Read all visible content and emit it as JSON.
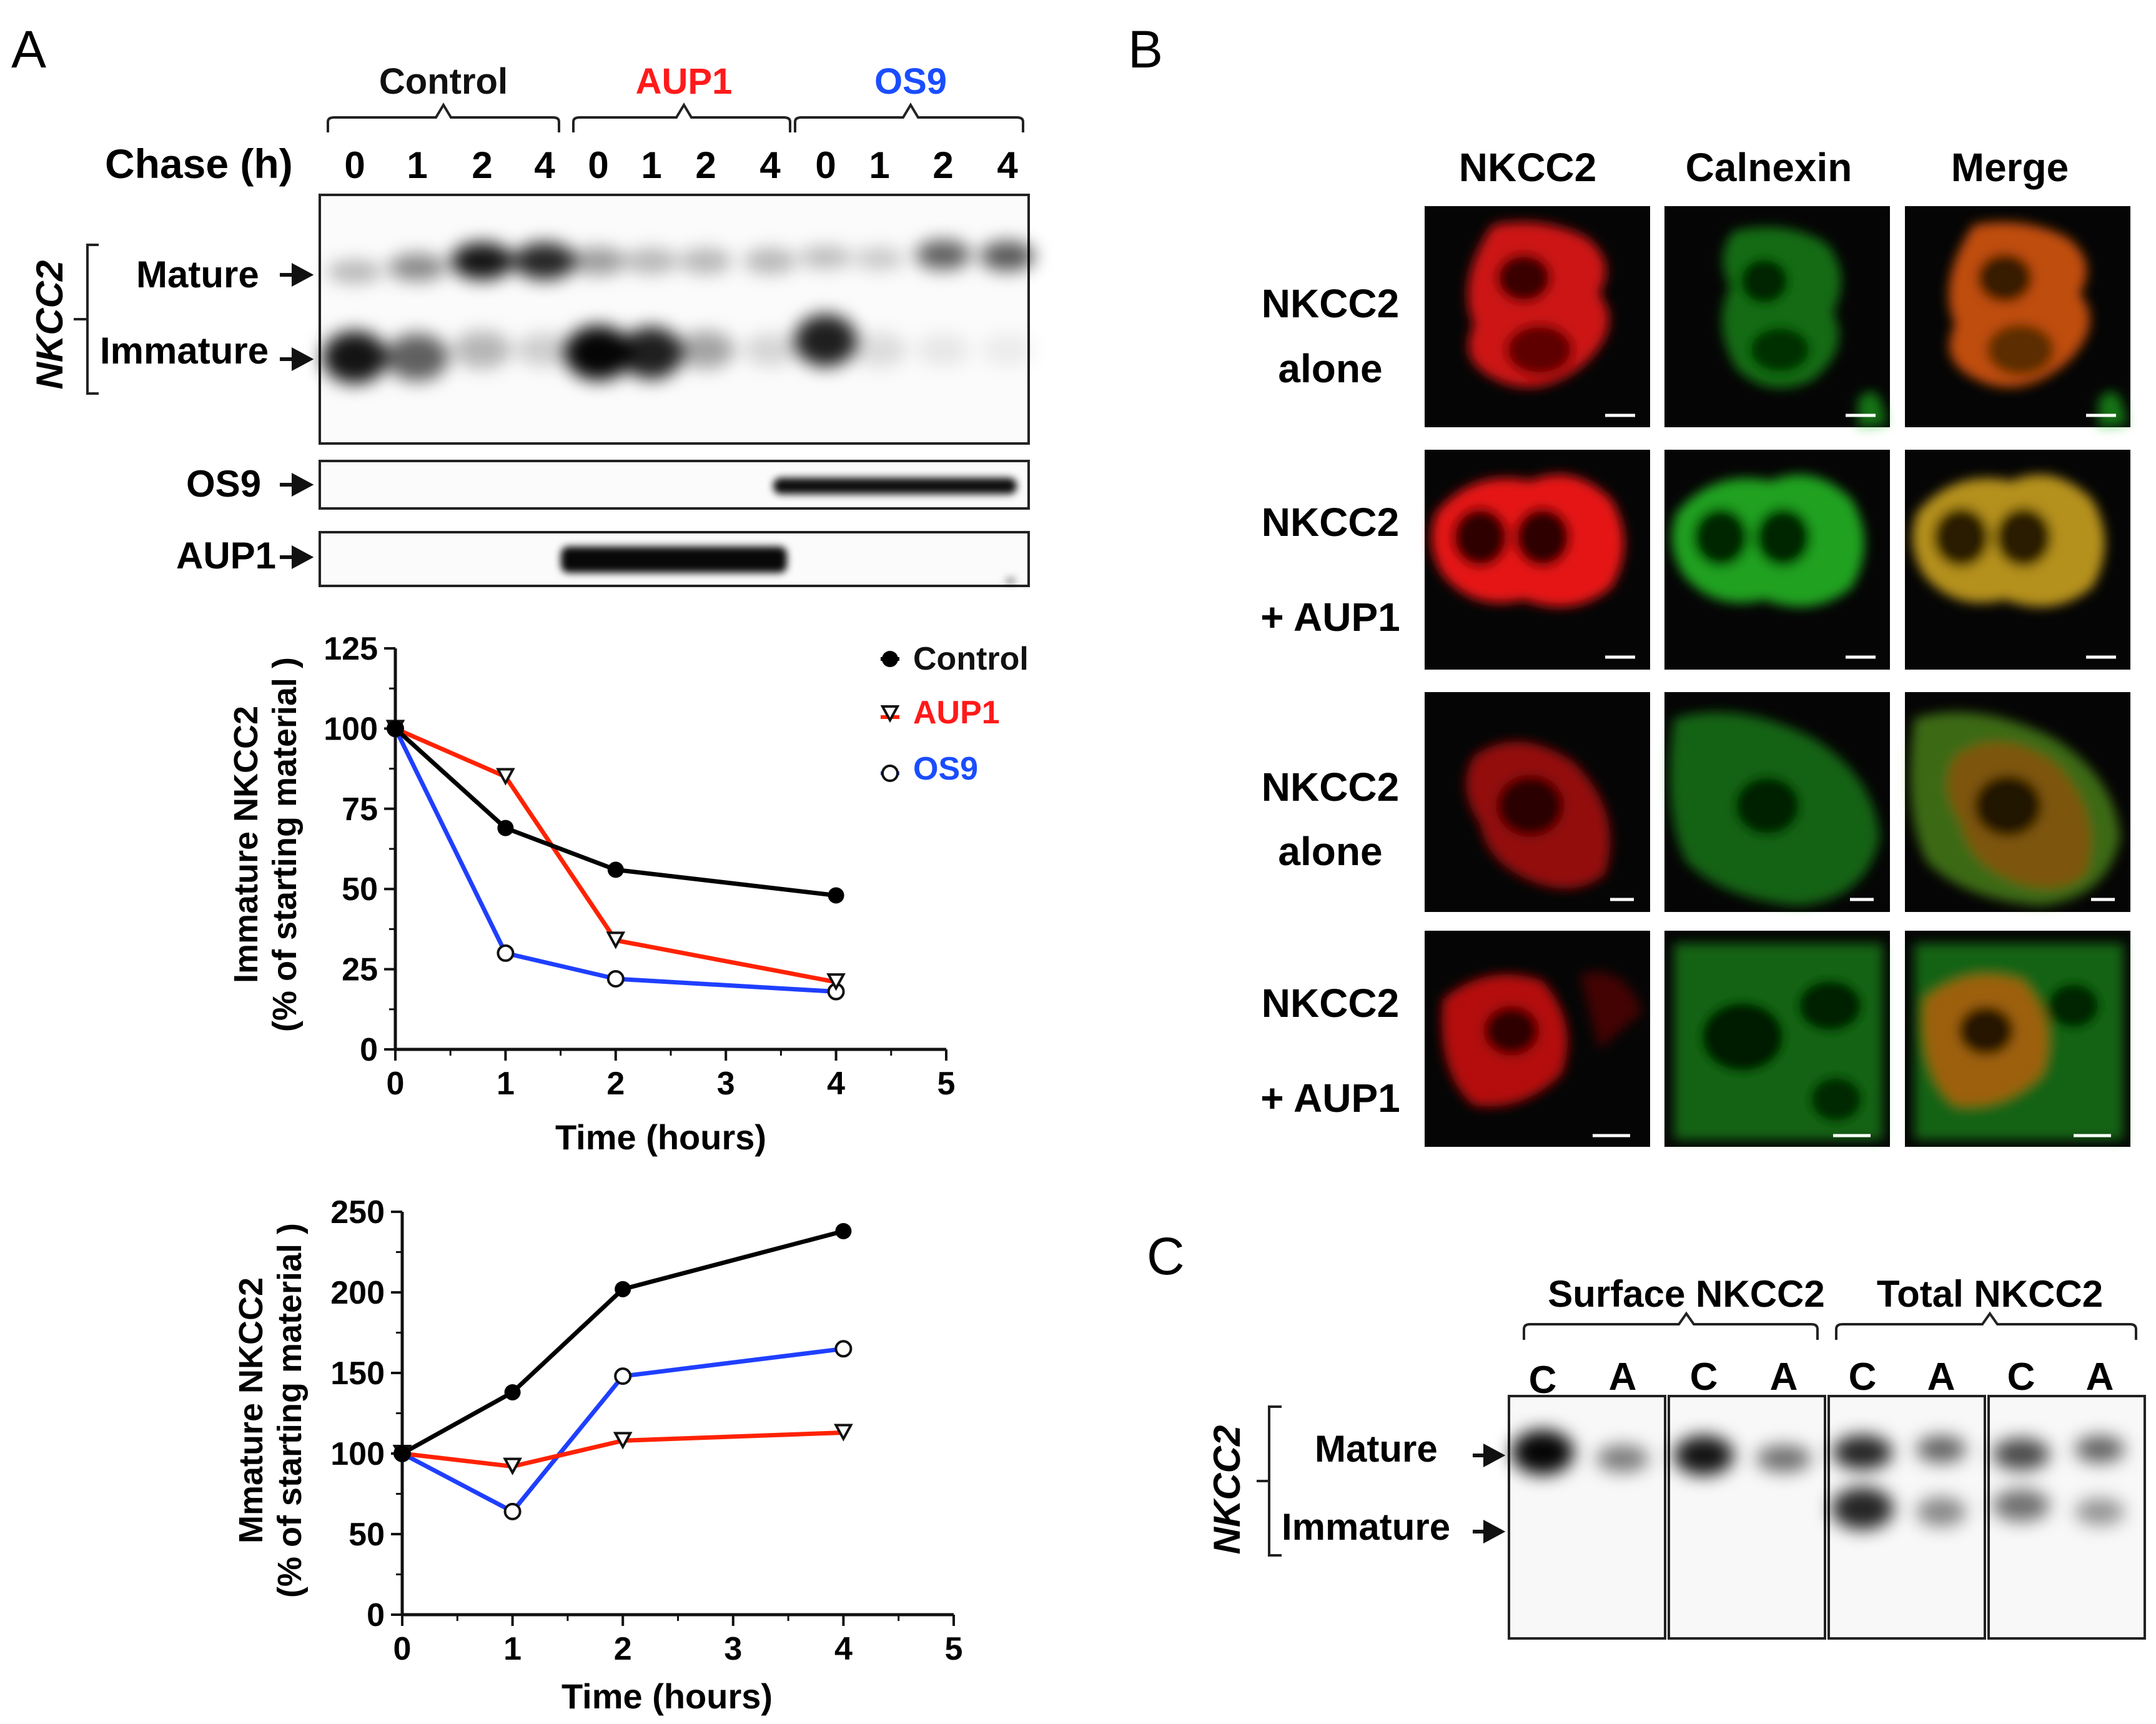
{
  "panels": {
    "a": "A",
    "b": "B",
    "c": "C"
  },
  "panel_a": {
    "groups": [
      "Control",
      "AUP1",
      "OS9"
    ],
    "group_colors": [
      "#111111",
      "#ff1a1a",
      "#1a4dff"
    ],
    "chase_label": "Chase (h)",
    "chase_times": [
      "0",
      "1",
      "2",
      "4",
      "0",
      "1",
      "2",
      "4",
      "0",
      "1",
      "2",
      "4"
    ],
    "protein_label": "NKCC2",
    "band_mature": "Mature",
    "band_immature": "Immature",
    "os9_blot_label": "OS9",
    "aup1_blot_label": "AUP1"
  },
  "panel_b": {
    "columns": [
      "NKCC2",
      "Calnexin",
      "Merge"
    ],
    "rows": [
      {
        "line1": "NKCC2",
        "line2": "alone"
      },
      {
        "line1": "NKCC2",
        "line2": "+ AUP1"
      },
      {
        "line1": "NKCC2",
        "line2": "alone"
      },
      {
        "line1": "NKCC2",
        "line2": "+ AUP1"
      }
    ]
  },
  "panel_c": {
    "surface_label": "Surface NKCC2",
    "total_label": "Total NKCC2",
    "lanes": [
      "C",
      "A",
      "C",
      "A",
      "C",
      "A",
      "C",
      "A"
    ],
    "protein_label": "NKCC2",
    "band_mature": "Mature",
    "band_immature": "Immature"
  },
  "chart_data": [
    {
      "type": "line",
      "xlabel": "Time (hours)",
      "ylabel_line1": "Immature NKCC2",
      "ylabel_line2": "(% of starting material )",
      "xlim": [
        0,
        5
      ],
      "ylim": [
        0,
        125
      ],
      "xticks": [
        0,
        1,
        2,
        3,
        4,
        5
      ],
      "yticks": [
        0,
        25,
        50,
        75,
        100,
        125
      ],
      "legend": "top-right",
      "series": [
        {
          "name": "Control",
          "color": "#000000",
          "marker": "filled-circle",
          "x": [
            0,
            1,
            2,
            4
          ],
          "y": [
            100,
            69,
            56,
            48
          ]
        },
        {
          "name": "AUP1",
          "color": "#ff2200",
          "marker": "down-triangle",
          "x": [
            0,
            1,
            2,
            4
          ],
          "y": [
            100,
            85,
            34,
            21
          ]
        },
        {
          "name": "OS9",
          "color": "#1f3fff",
          "marker": "open-circle",
          "x": [
            0,
            1,
            2,
            4
          ],
          "y": [
            100,
            30,
            22,
            18
          ]
        }
      ]
    },
    {
      "type": "line",
      "xlabel": "Time (hours)",
      "ylabel_line1": "Mmature NKCC2",
      "ylabel_line2": "(% of starting material )",
      "xlim": [
        0,
        5
      ],
      "ylim": [
        0,
        250
      ],
      "xticks": [
        0,
        1,
        2,
        3,
        4,
        5
      ],
      "yticks": [
        0,
        50,
        100,
        150,
        200,
        250
      ],
      "series": [
        {
          "color": "#000000",
          "marker": "filled-circle",
          "x": [
            0,
            1,
            2,
            4
          ],
          "y": [
            100,
            138,
            202,
            238
          ]
        },
        {
          "color": "#ff2200",
          "marker": "down-triangle",
          "x": [
            0,
            1,
            2,
            4
          ],
          "y": [
            100,
            92,
            108,
            113
          ]
        },
        {
          "color": "#1f3fff",
          "marker": "open-circle",
          "x": [
            0,
            1,
            2,
            4
          ],
          "y": [
            100,
            64,
            148,
            165
          ]
        }
      ]
    }
  ]
}
